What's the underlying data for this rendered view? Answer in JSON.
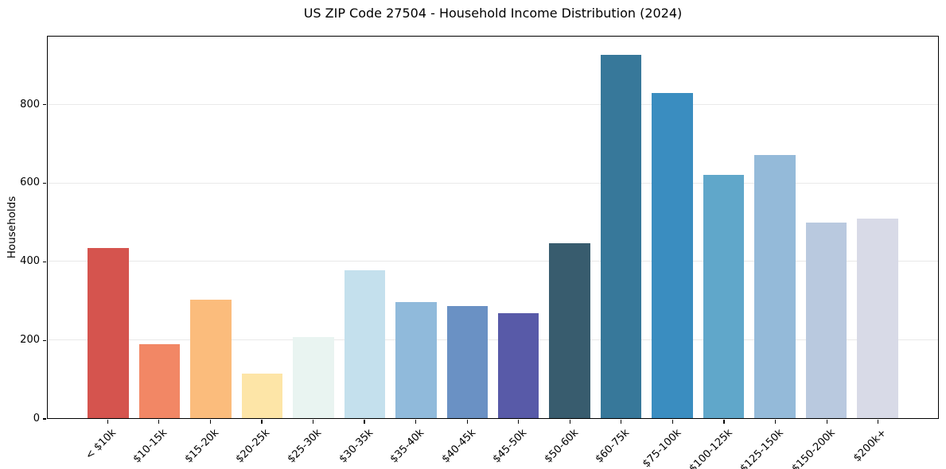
{
  "chart_data": {
    "type": "bar",
    "title": "US ZIP Code 27504 - Household Income Distribution (2024)",
    "xlabel": "",
    "ylabel": "Households",
    "categories": [
      "< $10k",
      "$10-15k",
      "$15-20k",
      "$20-25k",
      "$25-30k",
      "$30-35k",
      "$35-40k",
      "$40-45k",
      "$45-50k",
      "$50-60k",
      "$60-75k",
      "$75-100k",
      "$100-125k",
      "$125-150k",
      "$150-200k",
      "$200k+"
    ],
    "values": [
      435,
      188,
      302,
      114,
      208,
      378,
      297,
      287,
      269,
      446,
      928,
      831,
      622,
      673,
      500,
      510
    ],
    "bar_colors": [
      "#d5544e",
      "#f28765",
      "#fbbc7c",
      "#fde5a7",
      "#e9f4f1",
      "#c4e0ed",
      "#90badb",
      "#6a91c4",
      "#585aa8",
      "#385c6e",
      "#37789a",
      "#3a8dc0",
      "#60a7ca",
      "#94bad9",
      "#b9c9df",
      "#d8dae7"
    ],
    "yticks": [
      0,
      200,
      400,
      600,
      800
    ],
    "ylim": [
      0,
      975
    ],
    "grid": true,
    "grid_color": "#e9e9e9",
    "axis_color": "#000000",
    "background_color": "#ffffff",
    "x_tick_rotation_deg": 45,
    "legend_position": "none"
  }
}
